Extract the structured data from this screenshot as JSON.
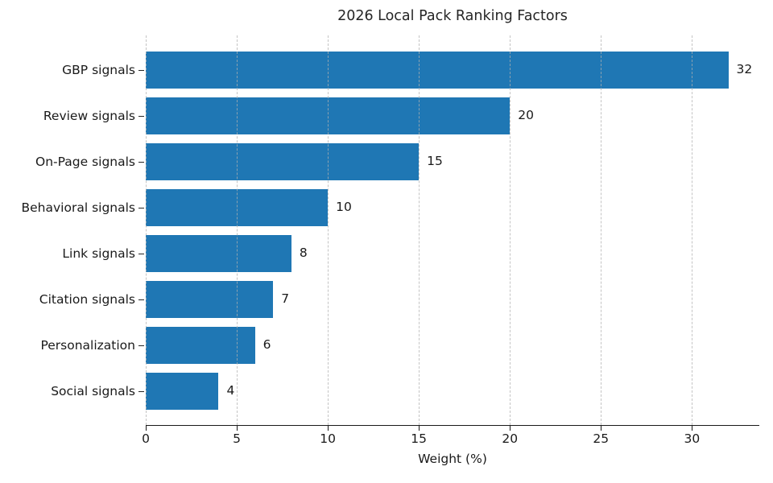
{
  "figure": {
    "background": "#ffffff"
  },
  "chart_data": {
    "type": "bar",
    "orientation": "horizontal",
    "title": "2026 Local Pack Ranking Factors",
    "xlabel": "Weight (%)",
    "ylabel": "",
    "categories": [
      "GBP signals",
      "Review signals",
      "On-Page signals",
      "Behavioral signals",
      "Link signals",
      "Citation signals",
      "Personalization",
      "Social signals"
    ],
    "values": [
      32,
      20,
      15,
      10,
      8,
      7,
      6,
      4
    ],
    "value_labels": [
      "32",
      "20",
      "15",
      "10",
      "8",
      "7",
      "6",
      "4"
    ],
    "xticks": [
      0,
      5,
      10,
      15,
      20,
      25,
      30
    ],
    "xlim": [
      0,
      33.7
    ],
    "grid": "vertical-dashed",
    "grid_color": "rgba(176,176,176,0.75)",
    "bar_color": "#1f77b4",
    "text_color": "#1a1a1a",
    "legend": null
  }
}
